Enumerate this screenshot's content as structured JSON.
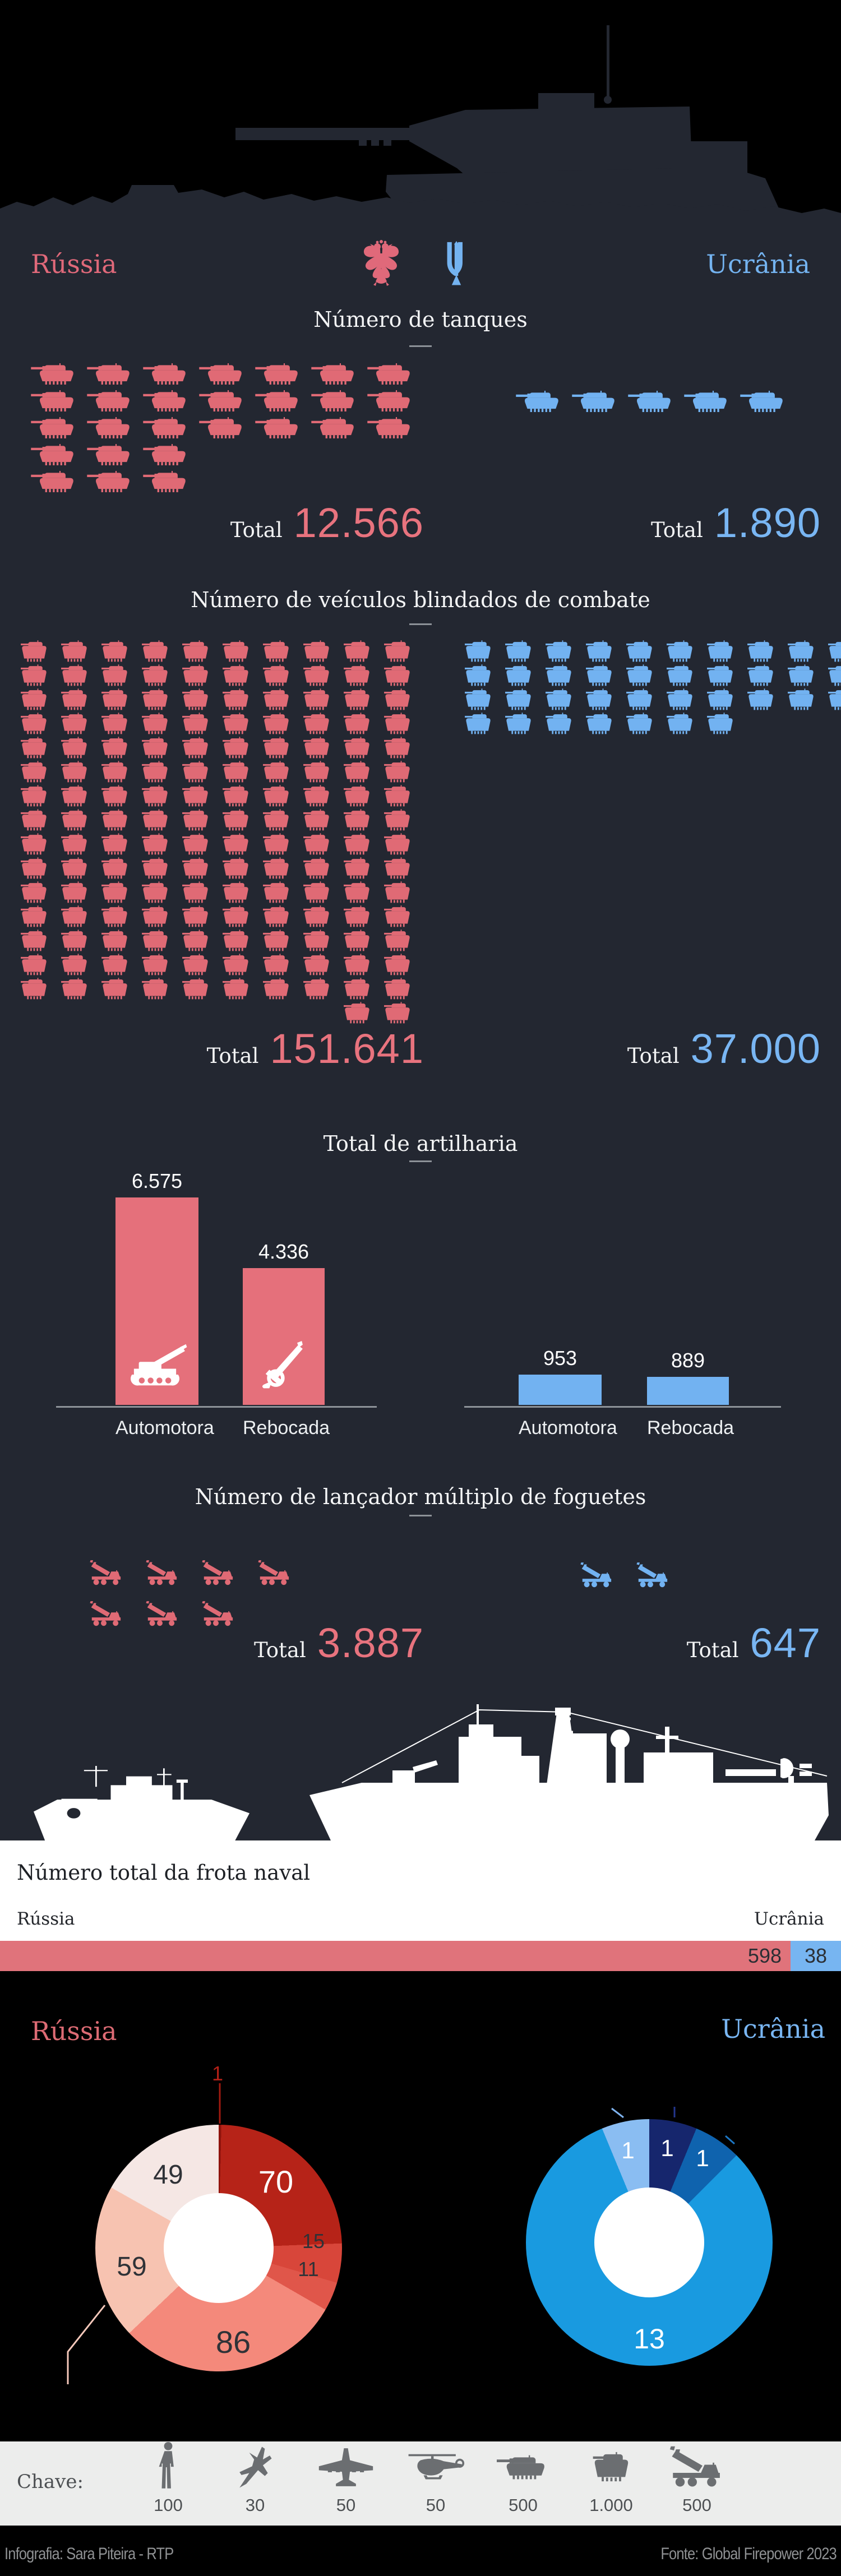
{
  "colors": {
    "background_dark": "#232731",
    "background_black": "#000000",
    "russia_red": "#e06a75",
    "ukraine_blue": "#72b2f1",
    "naval_bar_red": "#e0737b",
    "naval_bar_blue": "#77b5f1",
    "legend_bg": "#ecedec"
  },
  "header": {
    "russia": "Rússia",
    "ukraine": "Ucrânia"
  },
  "sections": {
    "tanks": {
      "title": "Número de tanques",
      "total_label": "Total",
      "russia_total": "12.566",
      "ukraine_total": "1.890",
      "russia_rows": [
        7,
        7,
        7,
        3,
        3
      ],
      "ukraine_rows": [
        5
      ]
    },
    "vehicles": {
      "title": "Número de veículos blindados de combate",
      "total_label": "Total",
      "russia_total": "151.641",
      "ukraine_total": "37.000",
      "russia_rows": [
        10,
        10,
        10,
        10,
        10,
        10,
        10,
        10,
        10,
        10,
        10,
        10,
        10,
        10,
        10,
        2
      ],
      "ukraine_rows": [
        10,
        10,
        10,
        7
      ]
    },
    "artillery": {
      "title": "Total de artilharia",
      "categories": [
        "Automotora",
        "Rebocada"
      ],
      "russia_display": [
        "6.575",
        "4.336"
      ],
      "ukraine_display": [
        "953",
        "889"
      ]
    },
    "rockets": {
      "title": "Número de lançador múltiplo de foguetes",
      "total_label": "Total",
      "russia_total": "3.887",
      "ukraine_total": "647",
      "russia_rows": [
        4,
        3
      ],
      "ukraine_rows": [
        2
      ]
    },
    "naval": {
      "title": "Número total da frota naval",
      "russia_label": "Rússia",
      "ukraine_label": "Ucrânia",
      "russia_value": "598",
      "ukraine_value": "38"
    },
    "fleet": {
      "russia_label": "Rússia",
      "ukraine_label": "Ucrânia",
      "russia_callout": "1",
      "russia_slices": [
        {
          "value": 1,
          "label": "",
          "color": "#8f130c"
        },
        {
          "value": 70,
          "label": "70",
          "color": "#b62318"
        },
        {
          "value": 15,
          "label": "15",
          "color": "#d8463a"
        },
        {
          "value": 11,
          "label": "11",
          "color": "#e0564a"
        },
        {
          "value": 86,
          "label": "86",
          "color": "#f4897b"
        },
        {
          "value": 59,
          "label": "59",
          "color": "#f7c3b1"
        },
        {
          "value": 49,
          "label": "49",
          "color": "#f5e7e4"
        }
      ],
      "ukraine_slices": [
        {
          "value": 1,
          "label": "1",
          "color": "#16266d"
        },
        {
          "value": 1,
          "label": "1",
          "color": "#0f63ae"
        },
        {
          "value": 13,
          "label": "13",
          "color": "#199ae0"
        },
        {
          "value": 1,
          "label": "1",
          "color": "#8abdf2"
        }
      ]
    }
  },
  "legend": {
    "label": "Chave:",
    "items": [
      {
        "icon": "soldier-icon",
        "value": "100"
      },
      {
        "icon": "fighter-jet-icon",
        "value": "30"
      },
      {
        "icon": "plane-icon",
        "value": "50"
      },
      {
        "icon": "helicopter-icon",
        "value": "50"
      },
      {
        "icon": "tank-icon",
        "value": "500"
      },
      {
        "icon": "vehicle-icon",
        "value": "1.000"
      },
      {
        "icon": "mlrs-icon",
        "value": "500"
      }
    ]
  },
  "footer": {
    "credit": "Infografia: Sara Piteira - RTP",
    "source": "Fonte: Global Firepower 2023"
  },
  "chart_data": [
    {
      "type": "pictograph",
      "title": "Número de tanques",
      "unit_per_icon": 500,
      "series": [
        {
          "name": "Rússia",
          "total": 12566
        },
        {
          "name": "Ucrânia",
          "total": 1890
        }
      ]
    },
    {
      "type": "pictograph",
      "title": "Número de veículos blindados de combate",
      "unit_per_icon": 1000,
      "series": [
        {
          "name": "Rússia",
          "total": 151641
        },
        {
          "name": "Ucrânia",
          "total": 37000
        }
      ]
    },
    {
      "type": "bar",
      "title": "Total de artilharia",
      "categories": [
        "Automotora",
        "Rebocada"
      ],
      "series": [
        {
          "name": "Rússia",
          "values": [
            6575,
            4336
          ]
        },
        {
          "name": "Ucrânia",
          "values": [
            953,
            889
          ]
        }
      ],
      "ylim": [
        0,
        6575
      ],
      "grid": false,
      "value_labels": true
    },
    {
      "type": "pictograph",
      "title": "Número de lançador múltiplo de foguetes",
      "unit_per_icon": 500,
      "series": [
        {
          "name": "Rússia",
          "total": 3887
        },
        {
          "name": "Ucrânia",
          "total": 647
        }
      ]
    },
    {
      "type": "bar",
      "subtype": "stacked-horizontal",
      "title": "Número total da frota naval",
      "categories": [
        "Rússia",
        "Ucrânia"
      ],
      "values": [
        598,
        38
      ]
    },
    {
      "type": "pie",
      "subtype": "donut",
      "name": "Rússia frota por tipo",
      "values": [
        1,
        70,
        15,
        11,
        86,
        59,
        49
      ]
    },
    {
      "type": "pie",
      "subtype": "donut",
      "name": "Ucrânia frota por tipo",
      "values": [
        1,
        1,
        13,
        1
      ]
    }
  ]
}
